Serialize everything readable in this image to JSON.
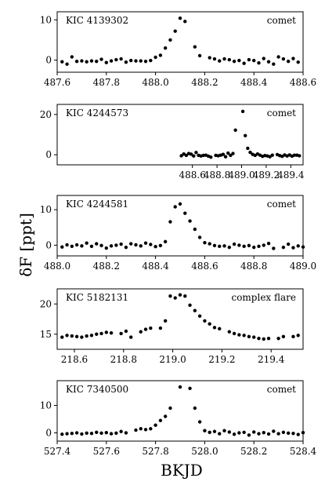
{
  "figure": {
    "ylabel": "δF [ppt]",
    "xlabel": "BKJD"
  },
  "chart_data": [
    {
      "type": "scatter",
      "star": "KIC 4139302",
      "label": "comet",
      "xlim": [
        487.6,
        488.6
      ],
      "ylim": [
        -3,
        12
      ],
      "xticks": [
        "487.6",
        "487.8",
        "488.0",
        "488.2",
        "488.4",
        "488.6"
      ],
      "yticks": [
        0,
        10
      ],
      "x": [
        487.62,
        487.64,
        487.66,
        487.68,
        487.7,
        487.72,
        487.74,
        487.76,
        487.78,
        487.8,
        487.82,
        487.84,
        487.86,
        487.88,
        487.9,
        487.92,
        487.94,
        487.96,
        487.98,
        488.0,
        488.02,
        488.04,
        488.06,
        488.08,
        488.1,
        488.12,
        488.16,
        488.18,
        488.22,
        488.24,
        488.26,
        488.28,
        488.3,
        488.32,
        488.34,
        488.36,
        488.38,
        488.4,
        488.42,
        488.44,
        488.46,
        488.48,
        488.5,
        488.52,
        488.54,
        488.56,
        488.58
      ],
      "y": [
        -0.4,
        -1.0,
        0.8,
        -0.3,
        -0.2,
        -0.4,
        -0.2,
        -0.3,
        0.2,
        -0.6,
        -0.2,
        0.1,
        0.3,
        -0.5,
        -0.1,
        -0.2,
        -0.2,
        -0.3,
        -0.1,
        0.7,
        1.2,
        3.0,
        5.0,
        7.2,
        10.4,
        9.6,
        3.3,
        1.1,
        0.6,
        0.3,
        -0.2,
        0.3,
        0.1,
        -0.3,
        -0.1,
        -0.8,
        0.1,
        -0.1,
        -0.7,
        0.4,
        -0.4,
        -1.0,
        0.8,
        0.3,
        -0.3,
        0.4,
        -0.5
      ]
    },
    {
      "type": "scatter",
      "star": "KIC 4244573",
      "label": "comet",
      "xlim": [
        487.5,
        489.5
      ],
      "ylim": [
        -5,
        25
      ],
      "xticks": [
        "488.6",
        "488.8",
        "489.0",
        "489.2",
        "489.4"
      ],
      "xtick_values": [
        488.6,
        488.8,
        489.0,
        489.2,
        489.4
      ],
      "yticks": [
        0,
        20
      ],
      "x": [
        488.51,
        488.53,
        488.55,
        488.57,
        488.59,
        488.61,
        488.63,
        488.65,
        488.67,
        488.69,
        488.71,
        488.73,
        488.75,
        488.79,
        488.81,
        488.83,
        488.85,
        488.87,
        488.89,
        488.91,
        488.93,
        488.95,
        489.01,
        489.03,
        489.05,
        489.07,
        489.09,
        489.11,
        489.13,
        489.15,
        489.17,
        489.19,
        489.21,
        489.23,
        489.25,
        489.29,
        489.31,
        489.33,
        489.35,
        489.37,
        489.39,
        489.41,
        489.43,
        489.45,
        489.47
      ],
      "y": [
        -0.5,
        0.4,
        -0.3,
        0.6,
        0.3,
        -0.6,
        1.1,
        -0.3,
        -0.6,
        -0.3,
        -0.2,
        -0.7,
        -1.2,
        -0.3,
        -0.5,
        -0.2,
        0.2,
        -1.0,
        0.8,
        -0.3,
        0.6,
        12.2,
        21.5,
        9.5,
        3.2,
        1.2,
        0.2,
        -0.3,
        0.4,
        -0.2,
        -0.8,
        -0.4,
        -0.6,
        -1.0,
        -0.2,
        0.1,
        -0.4,
        -0.8,
        -0.1,
        -0.6,
        -0.1,
        -0.7,
        -0.2,
        -0.2,
        -0.5
      ]
    },
    {
      "type": "scatter",
      "star": "KIC 4244581",
      "label": "comet",
      "xlim": [
        488.0,
        489.0
      ],
      "ylim": [
        -3,
        14
      ],
      "xticks": [
        "488.0",
        "488.2",
        "488.4",
        "488.6",
        "488.8",
        "489.0"
      ],
      "yticks": [
        0,
        10
      ],
      "x": [
        488.02,
        488.04,
        488.06,
        488.08,
        488.1,
        488.12,
        488.14,
        488.16,
        488.18,
        488.2,
        488.22,
        488.24,
        488.26,
        488.28,
        488.3,
        488.32,
        488.34,
        488.36,
        488.38,
        488.4,
        488.42,
        488.44,
        488.46,
        488.48,
        488.5,
        488.52,
        488.54,
        488.56,
        488.58,
        488.6,
        488.62,
        488.64,
        488.66,
        488.68,
        488.7,
        488.72,
        488.74,
        488.76,
        488.78,
        488.8,
        488.82,
        488.84,
        488.86,
        488.88,
        488.92,
        488.94,
        488.96,
        488.98,
        489.0
      ],
      "y": [
        -0.5,
        0.1,
        -0.3,
        0.1,
        -0.2,
        0.6,
        -0.3,
        0.4,
        -0.1,
        -0.8,
        -0.2,
        0.0,
        0.3,
        -0.6,
        0.4,
        0.1,
        -0.2,
        0.6,
        0.2,
        -0.4,
        -0.1,
        1.0,
        6.6,
        10.8,
        11.6,
        9.0,
        6.8,
        4.5,
        2.2,
        0.7,
        0.4,
        -0.1,
        -0.3,
        -0.2,
        -0.6,
        0.3,
        0.0,
        -0.3,
        -0.1,
        -0.6,
        -0.3,
        0.0,
        0.5,
        -0.9,
        -0.6,
        0.3,
        -0.7,
        -0.2,
        -0.5
      ]
    },
    {
      "type": "scatter",
      "star": "KIC 5182131",
      "label": "complex flare",
      "xlim": [
        218.53,
        219.53
      ],
      "ylim": [
        12.5,
        22.5
      ],
      "xticks": [
        "218.6",
        "218.8",
        "219.0",
        "219.2",
        "219.4"
      ],
      "yticks": [
        15,
        20
      ],
      "x": [
        218.55,
        218.57,
        218.59,
        218.61,
        218.63,
        218.65,
        218.67,
        218.69,
        218.71,
        218.73,
        218.75,
        218.79,
        218.81,
        218.83,
        218.87,
        218.89,
        218.91,
        218.95,
        218.97,
        218.99,
        219.01,
        219.03,
        219.05,
        219.07,
        219.09,
        219.11,
        219.13,
        219.15,
        219.17,
        219.19,
        219.23,
        219.25,
        219.27,
        219.29,
        219.31,
        219.33,
        219.35,
        219.37,
        219.39,
        219.43,
        219.45,
        219.49,
        219.51
      ],
      "y": [
        14.5,
        14.8,
        14.7,
        14.6,
        14.5,
        14.7,
        14.8,
        15.0,
        15.1,
        15.3,
        15.2,
        15.1,
        15.5,
        14.5,
        15.4,
        15.8,
        16.0,
        16.0,
        17.2,
        21.3,
        21.0,
        21.5,
        21.3,
        19.8,
        18.9,
        18.0,
        17.2,
        16.7,
        16.1,
        15.9,
        15.4,
        15.1,
        14.9,
        14.8,
        14.6,
        14.5,
        14.3,
        14.2,
        14.3,
        14.3,
        14.6,
        14.6,
        14.8
      ]
    },
    {
      "type": "scatter",
      "star": "KIC 7340500",
      "label": "comet",
      "xlim": [
        527.4,
        528.4
      ],
      "ylim": [
        -3,
        19
      ],
      "xticks": [
        "527.4",
        "527.6",
        "527.8",
        "528.0",
        "528.2",
        "528.4"
      ],
      "yticks": [
        0,
        10
      ],
      "x": [
        527.42,
        527.44,
        527.46,
        527.48,
        527.5,
        527.52,
        527.54,
        527.56,
        527.58,
        527.6,
        527.62,
        527.64,
        527.66,
        527.68,
        527.72,
        527.74,
        527.76,
        527.78,
        527.8,
        527.82,
        527.84,
        527.86,
        527.9,
        527.94,
        527.96,
        527.98,
        528.0,
        528.02,
        528.04,
        528.06,
        528.08,
        528.1,
        528.12,
        528.14,
        528.16,
        528.18,
        528.2,
        528.22,
        528.24,
        528.26,
        528.28,
        528.3,
        528.32,
        528.34,
        528.36,
        528.38,
        528.4
      ],
      "y": [
        -0.5,
        -0.3,
        -0.2,
        0.0,
        -0.4,
        -0.1,
        -0.2,
        0.2,
        -0.1,
        0.1,
        -0.3,
        -0.1,
        0.5,
        0.0,
        1.0,
        1.5,
        1.2,
        1.5,
        2.8,
        4.5,
        6.0,
        9.0,
        16.7,
        16.2,
        9.0,
        4.0,
        0.8,
        0.2,
        0.5,
        -0.3,
        0.8,
        0.3,
        -0.5,
        0.0,
        0.2,
        -0.8,
        0.3,
        -0.3,
        0.1,
        -0.4,
        0.6,
        -0.3,
        0.2,
        -0.1,
        -0.2,
        -0.6,
        0.1
      ]
    }
  ]
}
